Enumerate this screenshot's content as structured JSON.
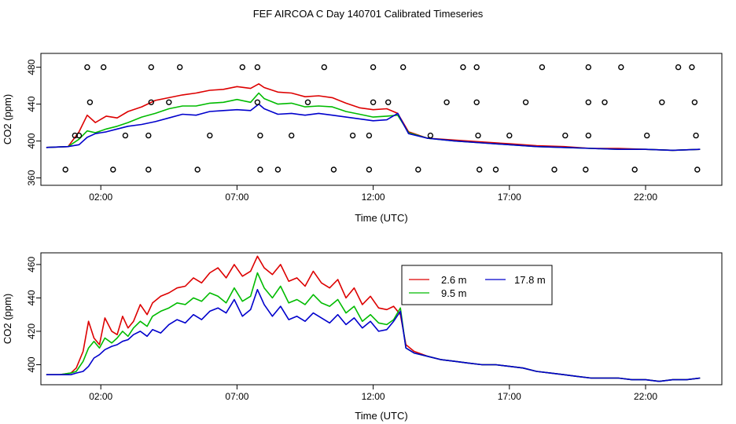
{
  "figure": {
    "title": "FEF AIRCOA C  Day 140701  Calibrated Timeseries"
  },
  "colors": {
    "s1": "#dd0000",
    "s2": "#00bb00",
    "s3": "#0000cc"
  },
  "chart_data": [
    {
      "type": "line",
      "xlabel": "Time (UTC)",
      "ylabel": "CO2 (ppm)",
      "x_ticks": [
        {
          "value": 2,
          "label": "02:00"
        },
        {
          "value": 7,
          "label": "07:00"
        },
        {
          "value": 12,
          "label": "12:00"
        },
        {
          "value": 17,
          "label": "17:00"
        },
        {
          "value": 22,
          "label": "22:00"
        }
      ],
      "y_ticks": [
        {
          "value": 360,
          "label": "360"
        },
        {
          "value": 400,
          "label": "400"
        },
        {
          "value": 440,
          "label": "440"
        },
        {
          "value": 480,
          "label": "480"
        }
      ],
      "xlim": [
        -0.2,
        24.8
      ],
      "ylim": [
        352,
        495
      ],
      "grid": false,
      "series": [
        {
          "color": "#dd0000",
          "x": [
            0,
            0.8,
            1.2,
            1.5,
            1.8,
            2.2,
            2.6,
            3.0,
            3.5,
            4.0,
            4.5,
            5.0,
            5.5,
            6.0,
            6.5,
            7.0,
            7.5,
            7.8,
            8.0,
            8.5,
            9.0,
            9.5,
            10.0,
            10.5,
            11.0,
            11.5,
            12.0,
            12.5,
            12.9,
            13.3,
            14.0,
            15.0,
            16.0,
            17.0,
            18.0,
            19.0,
            20.0,
            21.0,
            22.0,
            23.0,
            24.0
          ],
          "y": [
            393,
            394,
            410,
            428,
            420,
            427,
            425,
            432,
            437,
            444,
            447,
            450,
            452,
            455,
            456,
            459,
            457,
            462,
            458,
            453,
            452,
            448,
            449,
            447,
            441,
            436,
            434,
            435,
            430,
            410,
            403,
            401,
            399,
            397,
            395,
            394,
            392,
            392,
            391,
            390,
            391
          ]
        },
        {
          "color": "#00bb00",
          "x": [
            0,
            0.8,
            1.2,
            1.5,
            1.8,
            2.2,
            2.6,
            3.0,
            3.5,
            4.0,
            4.5,
            5.0,
            5.5,
            6.0,
            6.5,
            7.0,
            7.5,
            7.8,
            8.0,
            8.5,
            9.0,
            9.5,
            10.0,
            10.5,
            11.0,
            11.5,
            12.0,
            12.5,
            12.9,
            13.3,
            14.0,
            15.0,
            16.0,
            17.0,
            18.0,
            19.0,
            20.0,
            21.0,
            22.0,
            23.0,
            24.0
          ],
          "y": [
            393,
            394,
            402,
            411,
            409,
            413,
            416,
            420,
            426,
            430,
            435,
            438,
            438,
            441,
            442,
            445,
            442,
            452,
            446,
            440,
            441,
            437,
            438,
            437,
            432,
            429,
            426,
            427,
            428,
            409,
            403,
            400,
            398,
            396,
            394,
            393,
            392,
            391,
            391,
            390,
            391
          ]
        },
        {
          "color": "#0000cc",
          "x": [
            0,
            0.8,
            1.2,
            1.5,
            1.8,
            2.2,
            2.6,
            3.0,
            3.5,
            4.0,
            4.5,
            5.0,
            5.5,
            6.0,
            6.5,
            7.0,
            7.5,
            7.8,
            8.0,
            8.5,
            9.0,
            9.5,
            10.0,
            10.5,
            11.0,
            11.5,
            12.0,
            12.5,
            12.9,
            13.3,
            14.0,
            15.0,
            16.0,
            17.0,
            18.0,
            19.0,
            20.0,
            21.0,
            22.0,
            23.0,
            24.0
          ],
          "y": [
            393,
            394,
            396,
            404,
            408,
            410,
            413,
            416,
            418,
            421,
            425,
            429,
            428,
            432,
            433,
            434,
            433,
            440,
            435,
            429,
            430,
            428,
            430,
            428,
            426,
            424,
            422,
            423,
            430,
            408,
            403,
            400,
            398,
            396,
            394,
            393,
            392,
            391,
            391,
            390,
            391
          ]
        }
      ],
      "marker_points": {
        "x": [
          1.5,
          2.1,
          3.85,
          4.9,
          7.2,
          7.75,
          10.2,
          12.0,
          13.1,
          15.3,
          15.8,
          18.2,
          19.9,
          21.1,
          23.2,
          23.7,
          1.05,
          1.6,
          3.85,
          4.5,
          7.75,
          9.6,
          12.0,
          12.55,
          14.7,
          15.8,
          17.6,
          19.9,
          20.5,
          22.6,
          23.8,
          1.2,
          2.9,
          3.75,
          6.0,
          7.85,
          9.0,
          11.25,
          11.85,
          14.1,
          15.85,
          17.0,
          19.05,
          19.9,
          22.05,
          23.85,
          0.7,
          2.45,
          3.75,
          5.55,
          7.85,
          8.5,
          10.55,
          11.85,
          13.65,
          15.9,
          16.5,
          18.65,
          19.8,
          21.6,
          23.9
        ],
        "y": [
          480,
          480,
          480,
          480,
          480,
          480,
          480,
          480,
          480,
          480,
          480,
          480,
          480,
          480,
          480,
          480,
          406,
          442,
          442,
          442,
          442,
          442,
          442,
          442,
          442,
          442,
          442,
          442,
          442,
          442,
          442,
          406,
          406,
          406,
          406,
          406,
          406,
          406,
          406,
          406,
          406,
          406,
          406,
          406,
          406,
          406,
          369,
          369,
          369,
          369,
          369,
          369,
          369,
          369,
          369,
          369,
          369,
          369,
          369,
          369,
          369
        ]
      }
    },
    {
      "type": "line",
      "xlabel": "Time (UTC)",
      "ylabel": "CO2 (ppm)",
      "x_ticks": [
        {
          "value": 2,
          "label": "02:00"
        },
        {
          "value": 7,
          "label": "07:00"
        },
        {
          "value": 12,
          "label": "12:00"
        },
        {
          "value": 17,
          "label": "17:00"
        },
        {
          "value": 22,
          "label": "22:00"
        }
      ],
      "y_ticks": [
        {
          "value": 400,
          "label": "400"
        },
        {
          "value": 420,
          "label": "420"
        },
        {
          "value": 440,
          "label": "440"
        },
        {
          "value": 460,
          "label": "460"
        }
      ],
      "xlim": [
        -0.2,
        24.8
      ],
      "ylim": [
        388,
        467
      ],
      "grid": false,
      "legend_placement": "top-center",
      "series": [
        {
          "name": "2.6 m",
          "color": "#dd0000",
          "x": [
            0,
            0.5,
            0.9,
            1.1,
            1.35,
            1.55,
            1.75,
            1.95,
            2.15,
            2.4,
            2.6,
            2.8,
            3.0,
            3.2,
            3.45,
            3.7,
            3.9,
            4.2,
            4.5,
            4.8,
            5.1,
            5.4,
            5.7,
            6.0,
            6.3,
            6.6,
            6.9,
            7.2,
            7.5,
            7.75,
            8.0,
            8.3,
            8.6,
            8.9,
            9.2,
            9.5,
            9.8,
            10.1,
            10.4,
            10.7,
            11.0,
            11.3,
            11.6,
            11.9,
            12.2,
            12.5,
            12.75,
            13.0,
            13.2,
            13.5,
            14.0,
            14.5,
            15.0,
            15.5,
            16.0,
            16.5,
            17.0,
            17.5,
            18.0,
            18.5,
            19.0,
            19.5,
            20.0,
            20.5,
            21.0,
            21.5,
            22.0,
            22.5,
            23.0,
            23.5,
            24.0
          ],
          "y": [
            394,
            394,
            395,
            398,
            408,
            426,
            416,
            412,
            428,
            420,
            418,
            429,
            422,
            426,
            436,
            430,
            437,
            441,
            443,
            446,
            447,
            452,
            449,
            455,
            458,
            452,
            460,
            453,
            456,
            465,
            458,
            454,
            460,
            450,
            452,
            447,
            456,
            449,
            446,
            451,
            440,
            446,
            436,
            441,
            434,
            433,
            435,
            430,
            412,
            408,
            405,
            403,
            402,
            401,
            400,
            400,
            399,
            398,
            396,
            395,
            394,
            393,
            392,
            392,
            392,
            391,
            391,
            390,
            391,
            391,
            392
          ]
        },
        {
          "name": "9.5 m",
          "color": "#00bb00",
          "x": [
            0,
            0.5,
            0.9,
            1.1,
            1.35,
            1.55,
            1.75,
            1.95,
            2.15,
            2.4,
            2.6,
            2.8,
            3.0,
            3.2,
            3.45,
            3.7,
            3.9,
            4.2,
            4.5,
            4.8,
            5.1,
            5.4,
            5.7,
            6.0,
            6.3,
            6.6,
            6.9,
            7.2,
            7.5,
            7.75,
            8.0,
            8.3,
            8.6,
            8.9,
            9.2,
            9.5,
            9.8,
            10.1,
            10.4,
            10.7,
            11.0,
            11.3,
            11.6,
            11.9,
            12.2,
            12.5,
            12.75,
            13.0,
            13.2,
            13.5,
            14.0,
            14.5,
            15.0,
            15.5,
            16.0,
            16.5,
            17.0,
            17.5,
            18.0,
            18.5,
            19.0,
            19.5,
            20.0,
            20.5,
            21.0,
            21.5,
            22.0,
            22.5,
            23.0,
            23.5,
            24.0
          ],
          "y": [
            394,
            394,
            395,
            396,
            402,
            410,
            414,
            410,
            416,
            413,
            416,
            420,
            417,
            422,
            426,
            423,
            429,
            432,
            434,
            437,
            436,
            440,
            438,
            443,
            441,
            437,
            446,
            438,
            441,
            455,
            446,
            440,
            447,
            437,
            439,
            436,
            442,
            437,
            435,
            439,
            431,
            435,
            426,
            430,
            425,
            424,
            427,
            434,
            410,
            407,
            405,
            403,
            402,
            401,
            400,
            400,
            399,
            398,
            396,
            395,
            394,
            393,
            392,
            392,
            392,
            391,
            391,
            390,
            391,
            391,
            392
          ]
        },
        {
          "name": "17.8 m",
          "color": "#0000cc",
          "x": [
            0,
            0.5,
            0.9,
            1.1,
            1.35,
            1.55,
            1.75,
            1.95,
            2.15,
            2.4,
            2.6,
            2.8,
            3.0,
            3.2,
            3.45,
            3.7,
            3.9,
            4.2,
            4.5,
            4.8,
            5.1,
            5.4,
            5.7,
            6.0,
            6.3,
            6.6,
            6.9,
            7.2,
            7.5,
            7.75,
            8.0,
            8.3,
            8.6,
            8.9,
            9.2,
            9.5,
            9.8,
            10.1,
            10.4,
            10.7,
            11.0,
            11.3,
            11.6,
            11.9,
            12.2,
            12.5,
            12.75,
            13.0,
            13.2,
            13.5,
            14.0,
            14.5,
            15.0,
            15.5,
            16.0,
            16.5,
            17.0,
            17.5,
            18.0,
            18.5,
            19.0,
            19.5,
            20.0,
            20.5,
            21.0,
            21.5,
            22.0,
            22.5,
            23.0,
            23.5,
            24.0
          ],
          "y": [
            394,
            394,
            394,
            395,
            396,
            399,
            404,
            406,
            409,
            411,
            412,
            414,
            415,
            418,
            420,
            417,
            421,
            419,
            424,
            427,
            425,
            430,
            427,
            432,
            434,
            431,
            439,
            429,
            433,
            445,
            436,
            429,
            435,
            427,
            429,
            426,
            431,
            428,
            425,
            430,
            424,
            428,
            422,
            426,
            420,
            421,
            426,
            432,
            410,
            407,
            405,
            403,
            402,
            401,
            400,
            400,
            399,
            398,
            396,
            395,
            394,
            393,
            392,
            392,
            392,
            391,
            391,
            390,
            391,
            391,
            392
          ]
        }
      ]
    }
  ]
}
